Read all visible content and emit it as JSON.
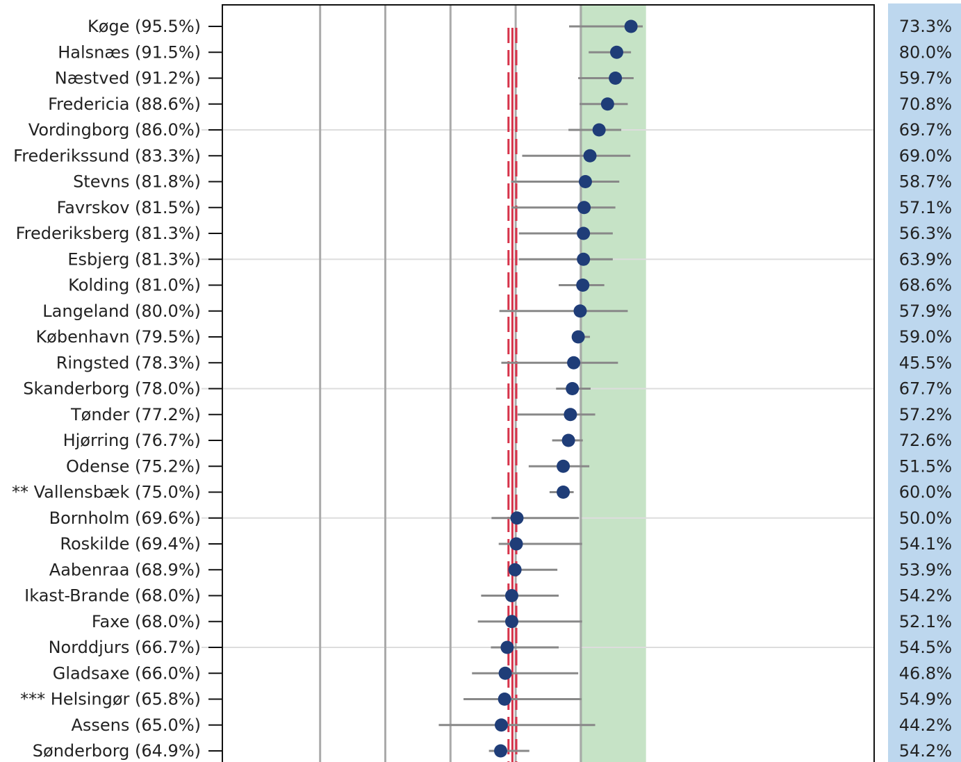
{
  "colors": {
    "point": "#1f3d78",
    "ci_line": "#888888",
    "green_band": "#c6e3c6",
    "green_line": "#1e8f3a",
    "ref_line": "#d6334a",
    "side_panel": "#bdd7ee",
    "grid": "#aaaaaa",
    "row_line": "#dddddd"
  },
  "chart_data": {
    "type": "forest",
    "xlim": [
      0,
      100
    ],
    "grid_x": [
      15,
      25,
      35,
      45,
      55
    ],
    "target_band": [
      55,
      65
    ],
    "reference": {
      "value": 44.5,
      "ci": [
        43.9,
        45.1
      ]
    },
    "rows": [
      {
        "label": "Køge (95.5%)",
        "value": 62.7,
        "ci": [
          53.2,
          64.5
        ],
        "side": "73.3%"
      },
      {
        "label": "Halsnæs (91.5%)",
        "value": 60.5,
        "ci": [
          56.2,
          62.7
        ],
        "side": "80.0%"
      },
      {
        "label": "Næstved (91.2%)",
        "value": 60.3,
        "ci": [
          54.6,
          63.1
        ],
        "side": "59.7%"
      },
      {
        "label": "Fredericia (88.6%)",
        "value": 59.1,
        "ci": [
          54.8,
          62.2
        ],
        "side": "70.8%"
      },
      {
        "label": "Vordingborg (86.0%)",
        "value": 57.8,
        "ci": [
          53.1,
          61.2
        ],
        "side": "69.7%"
      },
      {
        "label": "Frederikssund (83.3%)",
        "value": 56.4,
        "ci": [
          46.0,
          62.6
        ],
        "side": "69.0%"
      },
      {
        "label": "Stevns (81.8%)",
        "value": 55.7,
        "ci": [
          44.3,
          60.9
        ],
        "side": "58.7%"
      },
      {
        "label": "Favrskov (81.5%)",
        "value": 55.5,
        "ci": [
          44.4,
          60.3
        ],
        "side": "57.1%"
      },
      {
        "label": "Frederiksberg (81.3%)",
        "value": 55.4,
        "ci": [
          45.5,
          59.9
        ],
        "side": "56.3%"
      },
      {
        "label": "Esbjerg (81.3%)",
        "value": 55.4,
        "ci": [
          45.5,
          59.9
        ],
        "side": "63.9%"
      },
      {
        "label": "Kolding (81.0%)",
        "value": 55.3,
        "ci": [
          51.6,
          58.6
        ],
        "side": "68.6%"
      },
      {
        "label": "Langeland (80.0%)",
        "value": 54.9,
        "ci": [
          42.5,
          62.2
        ],
        "side": "57.9%"
      },
      {
        "label": "København (79.5%)",
        "value": 54.6,
        "ci": [
          53.9,
          56.4
        ],
        "side": "59.0%"
      },
      {
        "label": "Ringsted (78.3%)",
        "value": 53.9,
        "ci": [
          42.8,
          60.7
        ],
        "side": "45.5%"
      },
      {
        "label": "Skanderborg (78.0%)",
        "value": 53.7,
        "ci": [
          51.2,
          56.5
        ],
        "side": "67.7%"
      },
      {
        "label": "Tønder (77.2%)",
        "value": 53.4,
        "ci": [
          45.3,
          57.2
        ],
        "side": "57.2%"
      },
      {
        "label": "Hjørring (76.7%)",
        "value": 53.1,
        "ci": [
          50.6,
          55.3
        ],
        "side": "72.6%"
      },
      {
        "label": "Odense (75.2%)",
        "value": 52.3,
        "ci": [
          47.0,
          56.3
        ],
        "side": "51.5%"
      },
      {
        "label": "** Vallensbæk (75.0%)",
        "value": 52.3,
        "ci": [
          50.2,
          53.9
        ],
        "side": "60.0%"
      },
      {
        "label": "Bornholm (69.6%)",
        "value": 45.2,
        "ci": [
          41.3,
          54.7
        ],
        "side": "50.0%"
      },
      {
        "label": "Roskilde (69.4%)",
        "value": 45.1,
        "ci": [
          42.4,
          55.2
        ],
        "side": "54.1%"
      },
      {
        "label": "Aabenraa (68.9%)",
        "value": 44.9,
        "ci": [
          44.4,
          51.4
        ],
        "side": "53.9%"
      },
      {
        "label": "Ikast-Brande (68.0%)",
        "value": 44.4,
        "ci": [
          39.7,
          51.6
        ],
        "side": "54.2%"
      },
      {
        "label": "Faxe (68.0%)",
        "value": 44.4,
        "ci": [
          39.2,
          55.2
        ],
        "side": "52.1%"
      },
      {
        "label": "Norddjurs (66.7%)",
        "value": 43.7,
        "ci": [
          41.2,
          51.6
        ],
        "side": "54.5%"
      },
      {
        "label": "Gladsaxe (66.0%)",
        "value": 43.4,
        "ci": [
          38.3,
          54.6
        ],
        "side": "46.8%"
      },
      {
        "label": "*** Helsingør (65.8%)",
        "value": 43.3,
        "ci": [
          37.0,
          55.1
        ],
        "side": "54.9%"
      },
      {
        "label": "Assens (65.0%)",
        "value": 42.8,
        "ci": [
          33.2,
          57.2
        ],
        "side": "44.2%"
      },
      {
        "label": "Sønderborg (64.9%)",
        "value": 42.7,
        "ci": [
          40.9,
          47.1
        ],
        "side": "54.2%"
      }
    ]
  }
}
